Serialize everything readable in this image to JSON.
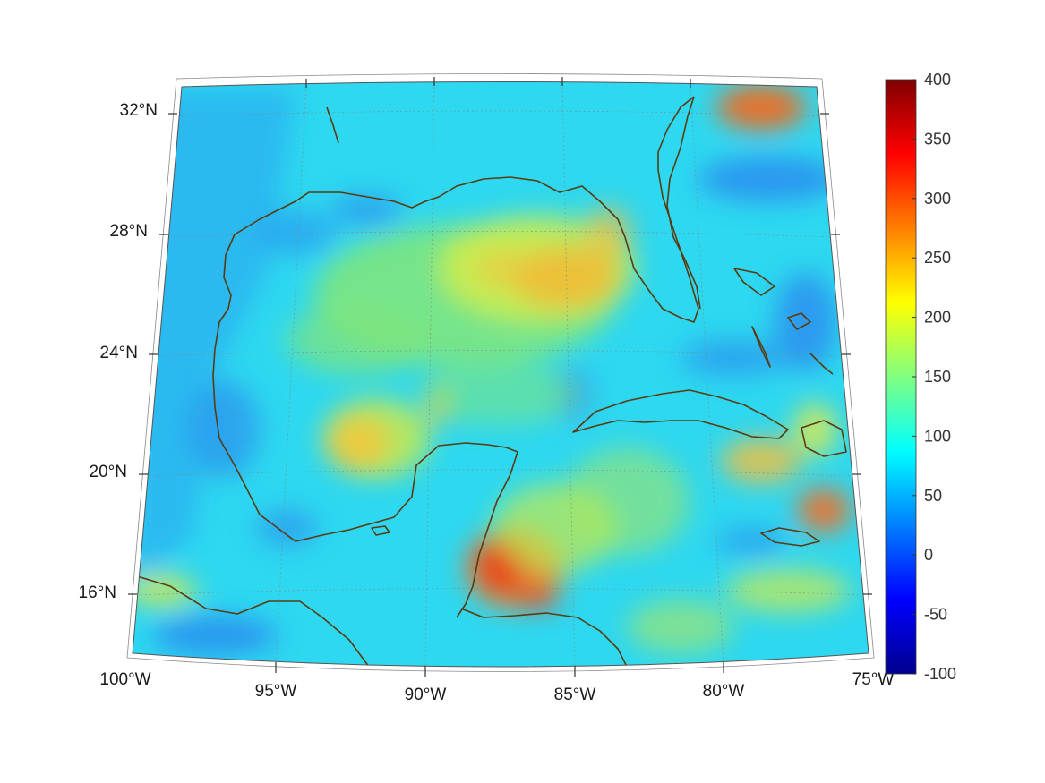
{
  "map": {
    "projection": "conic",
    "region": "Gulf of Mexico and Caribbean",
    "lon_range": [
      -100,
      -75
    ],
    "lat_range": [
      14,
      32
    ],
    "grid": true
  },
  "axes": {
    "lon_ticks": [
      "100°W",
      "95°W",
      "90°W",
      "85°W",
      "80°W",
      "75°W"
    ],
    "lat_ticks": [
      "32°N",
      "28°N",
      "24°N",
      "20°N",
      "16°N"
    ]
  },
  "colorbar": {
    "colormap": "jet",
    "min": -100,
    "max": 400,
    "ticks": [
      "400",
      "350",
      "300",
      "250",
      "200",
      "150",
      "100",
      "50",
      "0",
      "-50",
      "-100"
    ]
  },
  "colors": {
    "coastline": "#5a3a12",
    "background_field": "#2fd6f2",
    "frame": "#555555"
  }
}
